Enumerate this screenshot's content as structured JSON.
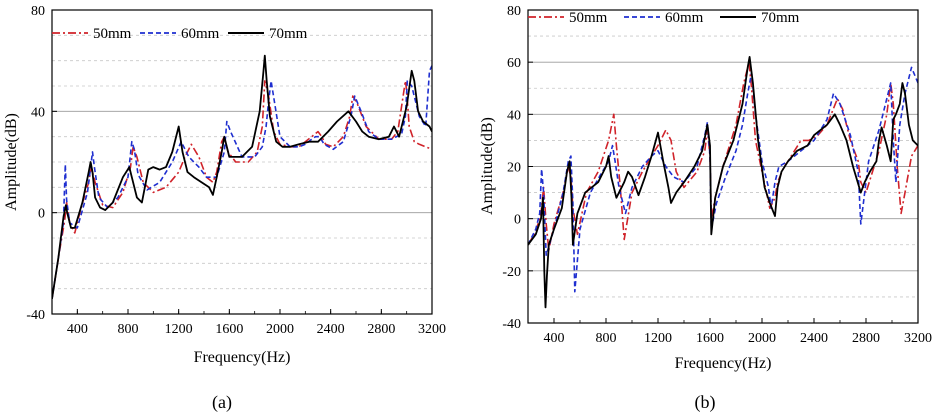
{
  "chart_data": [
    {
      "type": "line",
      "panel_label": "(a)",
      "xlabel": "Frequency(Hz)",
      "ylabel": "Amplitude(dB)",
      "xlim": [
        200,
        3200
      ],
      "ylim": [
        -40,
        80
      ],
      "xticks": [
        400,
        800,
        1200,
        1600,
        2000,
        2400,
        2800,
        3200
      ],
      "yticks": [
        -40,
        0,
        40,
        80
      ],
      "ytick_labels": [
        "-40",
        "0",
        "40",
        "80"
      ],
      "grid": "major solid, minor dashed (horizontal)",
      "legend": "top-left",
      "series": [
        {
          "name": "50mm",
          "color": "#d0232a",
          "dash": "8 3 2 3",
          "x": [
            200,
            260,
            300,
            315,
            340,
            380,
            430,
            490,
            510,
            540,
            600,
            680,
            760,
            820,
            840,
            870,
            920,
            1000,
            1100,
            1200,
            1250,
            1300,
            1360,
            1420,
            1470,
            1500,
            1540,
            1560,
            1590,
            1650,
            1750,
            1820,
            1860,
            1880,
            1910,
            1950,
            2000,
            2080,
            2150,
            2200,
            2250,
            2300,
            2330,
            2360,
            2420,
            2500,
            2550,
            2575,
            2610,
            2680,
            2780,
            2880,
            2930,
            2960,
            2990,
            3000,
            3020,
            3060,
            3100,
            3150,
            3200
          ],
          "y": [
            -34,
            -15,
            -3,
            4,
            -4,
            -8,
            2,
            12,
            18,
            12,
            3,
            2,
            8,
            18,
            26,
            22,
            12,
            8,
            10,
            16,
            22,
            27,
            22,
            14,
            12,
            16,
            28,
            30,
            24,
            20,
            20,
            24,
            34,
            52,
            46,
            32,
            27,
            26,
            26,
            28,
            30,
            32,
            30,
            27,
            26,
            30,
            38,
            46,
            43,
            34,
            29,
            29,
            32,
            42,
            52,
            48,
            34,
            28,
            27,
            26,
            25
          ]
        },
        {
          "name": "60mm",
          "color": "#1f2fd0",
          "dash": "5 3",
          "x": [
            200,
            250,
            290,
            305,
            315,
            340,
            400,
            480,
            520,
            535,
            570,
            640,
            720,
            800,
            830,
            850,
            880,
            950,
            1050,
            1150,
            1220,
            1280,
            1360,
            1420,
            1500,
            1560,
            1580,
            1610,
            1700,
            1800,
            1860,
            1890,
            1910,
            1930,
            2000,
            2080,
            2150,
            2200,
            2250,
            2280,
            2310,
            2350,
            2420,
            2500,
            2560,
            2590,
            2640,
            2700,
            2780,
            2880,
            2960,
            2990,
            3005,
            3040,
            3100,
            3150,
            3180,
            3200
          ],
          "y": [
            -34,
            -18,
            -4,
            19,
            5,
            -4,
            -6,
            8,
            24,
            18,
            6,
            2,
            6,
            14,
            28,
            25,
            15,
            9,
            12,
            20,
            28,
            22,
            18,
            14,
            14,
            24,
            36,
            32,
            22,
            22,
            26,
            34,
            44,
            52,
            30,
            26,
            26,
            27,
            29,
            30,
            30,
            27,
            25,
            28,
            38,
            46,
            40,
            32,
            29,
            29,
            31,
            38,
            52,
            50,
            38,
            34,
            56,
            58
          ]
        },
        {
          "name": "70mm",
          "color": "#000000",
          "dash": "",
          "x": [
            200,
            250,
            290,
            310,
            320,
            350,
            380,
            440,
            490,
            505,
            520,
            540,
            580,
            620,
            680,
            760,
            810,
            840,
            870,
            910,
            960,
            1000,
            1050,
            1100,
            1150,
            1200,
            1230,
            1270,
            1320,
            1380,
            1440,
            1470,
            1500,
            1540,
            1560,
            1600,
            1700,
            1780,
            1840,
            1870,
            1880,
            1895,
            1920,
            1970,
            2020,
            2080,
            2150,
            2230,
            2300,
            2380,
            2450,
            2540,
            2600,
            2650,
            2700,
            2780,
            2860,
            2900,
            2940,
            3000,
            3040,
            3060,
            3090,
            3130,
            3180,
            3200
          ],
          "y": [
            -34,
            -18,
            -2,
            3,
            0,
            -6,
            -6,
            4,
            16,
            20,
            16,
            6,
            2,
            1,
            4,
            14,
            18,
            12,
            6,
            4,
            17,
            18,
            17,
            18,
            24,
            34,
            24,
            16,
            14,
            12,
            10,
            7,
            14,
            24,
            30,
            22,
            22,
            26,
            40,
            56,
            62,
            52,
            38,
            28,
            26,
            26,
            27,
            28,
            28,
            32,
            36,
            40,
            36,
            32,
            30,
            29,
            30,
            34,
            30,
            42,
            56,
            52,
            40,
            36,
            34,
            32
          ]
        }
      ]
    },
    {
      "type": "line",
      "panel_label": "(b)",
      "xlabel": "Frequency(Hz)",
      "ylabel": "Amplitude(dB)",
      "xlim": [
        200,
        3200
      ],
      "ylim": [
        -40,
        80
      ],
      "xticks": [
        400,
        800,
        1200,
        1600,
        2000,
        2400,
        2800,
        3200
      ],
      "yticks": [
        -40,
        -20,
        0,
        20,
        40,
        60,
        80
      ],
      "ytick_labels": [
        "-40",
        "-20",
        "0",
        "20",
        "40",
        "60",
        "80"
      ],
      "grid": "major solid, minor dashed (horizontal)",
      "legend": "top",
      "series": [
        {
          "name": "50mm",
          "color": "#d0232a",
          "dash": "8 3 2 3",
          "x": [
            200,
            260,
            300,
            320,
            340,
            360,
            400,
            470,
            510,
            530,
            545,
            580,
            650,
            740,
            820,
            860,
            880,
            910,
            940,
            960,
            1000,
            1080,
            1150,
            1200,
            1260,
            1300,
            1340,
            1400,
            1500,
            1560,
            1580,
            1600,
            1610,
            1640,
            1700,
            1800,
            1860,
            1900,
            1920,
            1950,
            2000,
            2060,
            2100,
            2120,
            2170,
            2200,
            2250,
            2300,
            2360,
            2430,
            2500,
            2580,
            2620,
            2680,
            2740,
            2760,
            2800,
            2900,
            2960,
            2990,
            3010,
            3040,
            3070,
            3100,
            3150,
            3200
          ],
          "y": [
            -10,
            -5,
            2,
            12,
            -2,
            -12,
            -2,
            10,
            20,
            16,
            4,
            -6,
            10,
            18,
            30,
            40,
            28,
            12,
            -8,
            -2,
            10,
            18,
            24,
            28,
            34,
            30,
            18,
            12,
            18,
            26,
            34,
            24,
            0,
            8,
            20,
            36,
            52,
            60,
            50,
            30,
            18,
            4,
            8,
            14,
            20,
            22,
            26,
            30,
            30,
            32,
            36,
            46,
            42,
            30,
            22,
            14,
            10,
            26,
            40,
            52,
            44,
            20,
            2,
            10,
            24,
            28
          ]
        },
        {
          "name": "60mm",
          "color": "#1f2fd0",
          "dash": "5 3",
          "x": [
            200,
            260,
            290,
            305,
            320,
            340,
            400,
            470,
            510,
            530,
            545,
            560,
            600,
            680,
            760,
            820,
            850,
            870,
            900,
            950,
            1000,
            1080,
            1150,
            1200,
            1260,
            1320,
            1400,
            1500,
            1560,
            1580,
            1600,
            1610,
            1650,
            1720,
            1800,
            1850,
            1890,
            1920,
            1950,
            2000,
            2050,
            2070,
            2100,
            2130,
            2200,
            2300,
            2400,
            2500,
            2550,
            2600,
            2680,
            2740,
            2760,
            2780,
            2820,
            2900,
            2950,
            2990,
            3010,
            3030,
            3060,
            3100,
            3150,
            3200
          ],
          "y": [
            -10,
            -4,
            2,
            19,
            10,
            -14,
            -4,
            10,
            22,
            24,
            6,
            -28,
            -4,
            10,
            17,
            22,
            28,
            22,
            12,
            2,
            12,
            20,
            24,
            26,
            20,
            16,
            14,
            20,
            32,
            37,
            24,
            -4,
            6,
            16,
            26,
            36,
            48,
            56,
            40,
            22,
            12,
            4,
            14,
            20,
            22,
            26,
            30,
            38,
            48,
            44,
            32,
            18,
            -2,
            6,
            22,
            34,
            44,
            52,
            30,
            14,
            36,
            48,
            58,
            52
          ]
        },
        {
          "name": "70mm",
          "color": "#000000",
          "dash": "",
          "x": [
            200,
            260,
            300,
            315,
            325,
            335,
            345,
            360,
            400,
            460,
            500,
            520,
            535,
            545,
            580,
            640,
            740,
            800,
            820,
            840,
            880,
            940,
            970,
            1000,
            1050,
            1100,
            1150,
            1200,
            1240,
            1280,
            1300,
            1340,
            1400,
            1480,
            1540,
            1580,
            1600,
            1610,
            1640,
            1700,
            1780,
            1850,
            1890,
            1905,
            1930,
            1970,
            2020,
            2060,
            2100,
            2120,
            2150,
            2200,
            2270,
            2350,
            2400,
            2500,
            2560,
            2600,
            2650,
            2700,
            2760,
            2790,
            2830,
            2880,
            2900,
            2920,
            2960,
            2990,
            3010,
            3030,
            3060,
            3080,
            3100,
            3130,
            3160,
            3200
          ],
          "y": [
            -10,
            -6,
            0,
            8,
            -20,
            -34,
            -22,
            -10,
            -4,
            4,
            18,
            22,
            8,
            -10,
            2,
            10,
            14,
            20,
            24,
            16,
            8,
            14,
            18,
            16,
            9,
            16,
            24,
            33,
            22,
            12,
            6,
            10,
            14,
            20,
            26,
            36,
            28,
            -6,
            8,
            20,
            30,
            44,
            58,
            62,
            52,
            30,
            12,
            6,
            1,
            12,
            18,
            22,
            26,
            28,
            32,
            36,
            40,
            36,
            30,
            20,
            10,
            14,
            18,
            22,
            30,
            35,
            28,
            22,
            38,
            40,
            44,
            52,
            48,
            36,
            30,
            28
          ]
        }
      ]
    }
  ]
}
